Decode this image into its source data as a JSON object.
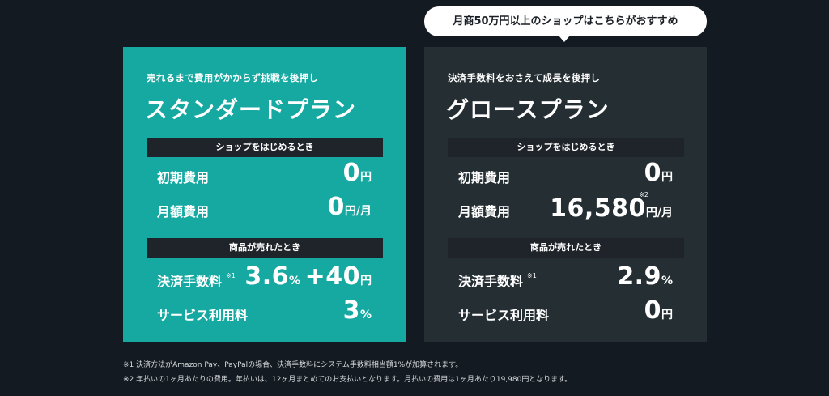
{
  "bubble": {
    "text": "月商50万円以上のショップはこちらがおすすめ"
  },
  "standard": {
    "tagline": "売れるまで費用がかからず挑戦を後押し",
    "name": "スタンダードプラン",
    "section_start": "ショップをはじめるとき",
    "initial_label": "初期費用",
    "initial_value": "0",
    "initial_unit": "円",
    "monthly_label": "月額費用",
    "monthly_value": "0",
    "monthly_unit": "円/月",
    "section_sold": "商品が売れたとき",
    "fee_label": "決済手数料",
    "fee_note": "※1",
    "fee_percent": "3.6",
    "fee_percent_unit": "%",
    "fee_plus": "+40",
    "fee_plus_unit": "円",
    "service_label": "サービス利用料",
    "service_value": "3",
    "service_unit": "%"
  },
  "growth": {
    "tagline": "決済手数料をおさえて成長を後押し",
    "name": "グロースプラン",
    "section_start": "ショップをはじめるとき",
    "initial_label": "初期費用",
    "initial_value": "0",
    "initial_unit": "円",
    "monthly_label": "月額費用",
    "monthly_note": "※2",
    "monthly_value": "16,580",
    "monthly_unit": "円/月",
    "section_sold": "商品が売れたとき",
    "fee_label": "決済手数料",
    "fee_note": "※1",
    "fee_value": "2.9",
    "fee_unit": "%",
    "service_label": "サービス利用料",
    "service_value": "0",
    "service_unit": "円"
  },
  "footnotes": {
    "note1": "※1 決済方法がAmazon Pay、PayPalの場合、決済手数料にシステム手数料相当額1%が加算されます。",
    "note2": "※2 年払いの1ヶ月あたりの費用。年払いは、12ヶ月まとめてのお支払いとなります。月払いの費用は1ヶ月あたり19,980円となります。"
  },
  "colors": {
    "background": "#141a21",
    "standard_card": "#15a9a1",
    "growth_card": "#252e33",
    "section_bar": "#1f242a",
    "bubble": "#ffffff"
  }
}
